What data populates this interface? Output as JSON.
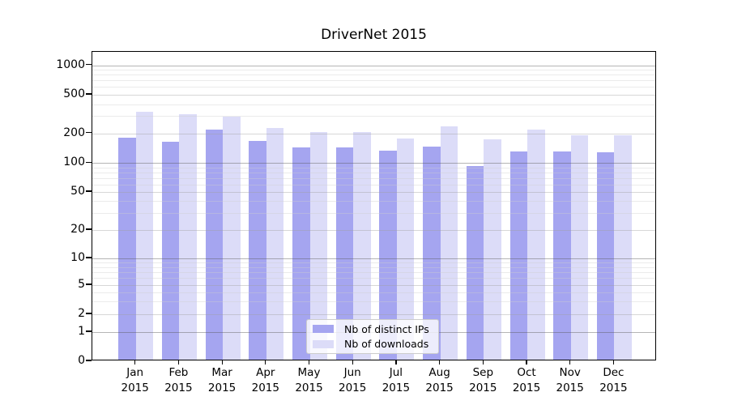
{
  "title": "DriverNet 2015",
  "chart_data": {
    "type": "bar",
    "title": "DriverNet 2015",
    "categories": [
      "Jan 2015",
      "Feb 2015",
      "Mar 2015",
      "Apr 2015",
      "May 2015",
      "Jun 2015",
      "Jul 2015",
      "Aug 2015",
      "Sep 2015",
      "Oct 2015",
      "Nov 2015",
      "Dec 2015"
    ],
    "series": [
      {
        "name": "Nb of distinct IPs",
        "color": "#a5a5f0",
        "values": [
          175,
          158,
          210,
          160,
          140,
          138,
          128,
          142,
          89,
          127,
          127,
          123
        ]
      },
      {
        "name": "Nb of downloads",
        "color": "#dcdcf8",
        "values": [
          318,
          300,
          285,
          220,
          200,
          197,
          172,
          225,
          168,
          208,
          183,
          184
        ]
      }
    ],
    "yscale": "symlog",
    "yticks": [
      0,
      1,
      2,
      5,
      10,
      20,
      50,
      100,
      200,
      500,
      1000
    ],
    "ylim": [
      0,
      1000
    ],
    "xlabel": "",
    "ylabel": "",
    "grid": true,
    "grid_above_bars": true,
    "legend_position": "lower center",
    "background": "#ffffff",
    "text_color": "#000000"
  }
}
